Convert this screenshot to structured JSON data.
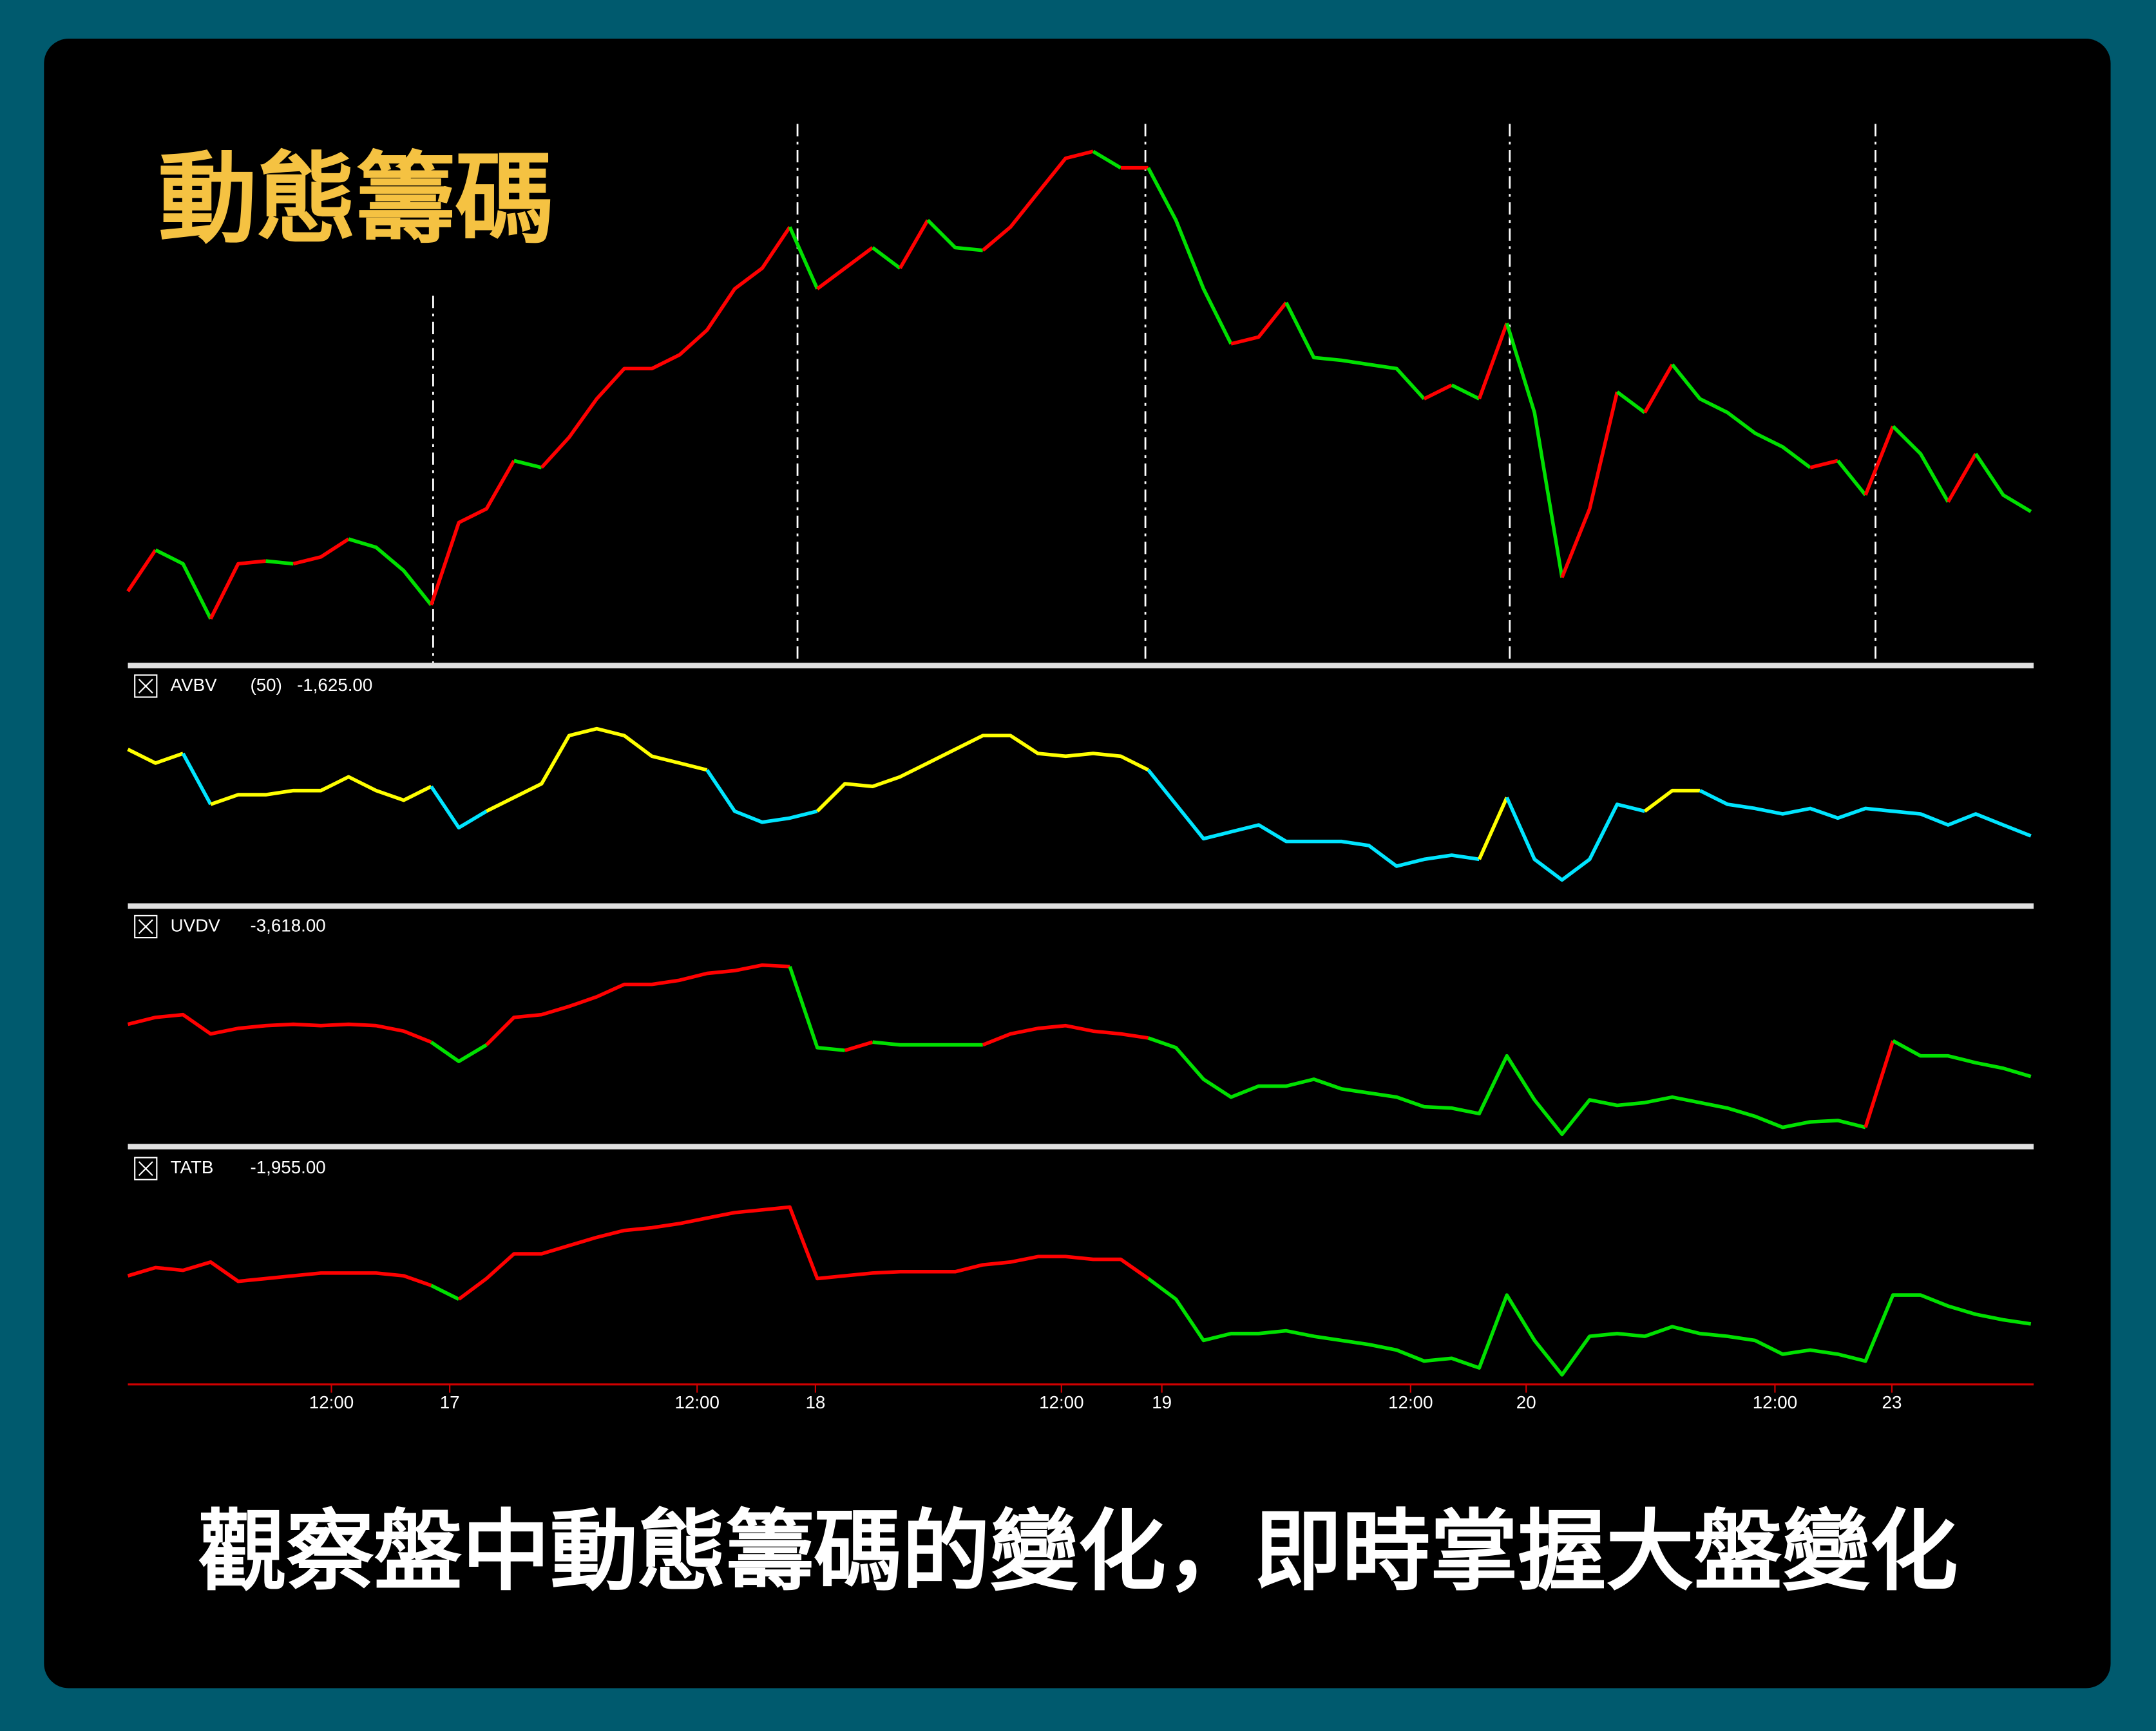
{
  "title": "動態籌碼",
  "caption": "觀察盤中動態籌碼的變化，即時掌握大盤變化",
  "chart_data": [
    {
      "type": "line",
      "color_up": "#ff0000",
      "color_down": "#00e000",
      "xlim": [
        0,
        69
      ],
      "ylim": [
        40,
        410
      ],
      "values": [
        70,
        100,
        90,
        50,
        90,
        92,
        90,
        95,
        108,
        102,
        85,
        60,
        120,
        130,
        165,
        160,
        182,
        210,
        232,
        232,
        242,
        260,
        290,
        305,
        335,
        290,
        305,
        320,
        305,
        340,
        320,
        318,
        335,
        360,
        385,
        390,
        378,
        378,
        340,
        290,
        250,
        255,
        280,
        240,
        238,
        235,
        232,
        210,
        220,
        210,
        265,
        200,
        80,
        130,
        215,
        200,
        235,
        210,
        200,
        185,
        175,
        160,
        165,
        140,
        190,
        170,
        135,
        170,
        140,
        128
      ]
    },
    {
      "type": "line",
      "name": "AVBV",
      "param": "(50)",
      "readout": "-1,625.00",
      "color_pos": "#ffff00",
      "color_neg": "#00e5ff",
      "xlim": [
        0,
        69
      ],
      "ylim": [
        -4562.5,
        4500
      ],
      "values": [
        2312.5,
        1687.5,
        2125,
        -187.5,
        250,
        250,
        437.5,
        437.5,
        1062.5,
        437.5,
        0,
        625,
        -1250,
        -500,
        125,
        750,
        2937.5,
        3250,
        2937.5,
        2000,
        1687.5,
        1375,
        -500,
        -1000,
        -812.5,
        -500,
        750,
        625,
        1062.5,
        1687.5,
        2312.5,
        2937.5,
        2937.5,
        2125,
        2000,
        2125,
        2000,
        1375,
        -187.5,
        -1750,
        -1437.5,
        -1125,
        -1875,
        -1875,
        -1875,
        -2062.5,
        -3000,
        -2687.5,
        -2500,
        -2687.5,
        125,
        -2687.5,
        -3625,
        -2687.5,
        -187.5,
        -500,
        437.5,
        437.5,
        -187.5,
        -375,
        -625,
        -375,
        -812.5,
        -375,
        -500,
        -625,
        -1125,
        -625,
        -1125,
        -1625
      ]
    },
    {
      "type": "line",
      "name": "UVDV",
      "readout": "-3,618.00",
      "color_pos": "#ff0000",
      "color_neg": "#00e000",
      "xlim": [
        0,
        69
      ],
      "ylim": [
        -10440,
        10585
      ],
      "values": [
        1885,
        2610,
        2900,
        870,
        1450,
        1740,
        1885,
        1740,
        1885,
        1740,
        1160,
        0,
        -2030,
        -290,
        2610,
        2900,
        3770,
        4785,
        6090,
        6090,
        6525,
        7250,
        7540,
        8120,
        7975,
        -580,
        -870,
        0,
        -290,
        -290,
        -290,
        -290,
        870,
        1450,
        1740,
        1160,
        870,
        435,
        -580,
        -3915,
        -5800,
        -4640,
        -4640,
        -3915,
        -4930,
        -5365,
        -5800,
        -6815,
        -6960,
        -7540,
        -1450,
        -6090,
        -9715,
        -6090,
        -6670,
        -6380,
        -5800,
        -6380,
        -6960,
        -7830,
        -8990,
        -8410,
        -8265,
        -8990,
        145,
        -1450,
        -1450,
        -2175,
        -2755,
        -3618
      ]
    },
    {
      "type": "line",
      "name": "TATB",
      "readout": "-1,955.00",
      "color_pos": "#ff0000",
      "color_neg": "#00e000",
      "xlim": [
        0,
        69
      ],
      "ylim": [
        -5525,
        6800
      ],
      "values": [
        1020,
        1530,
        1360,
        1870,
        680,
        850,
        1020,
        1190,
        1190,
        1190,
        1020,
        425,
        -425,
        850,
        2380,
        2380,
        2890,
        3400,
        3825,
        3995,
        4250,
        4590,
        4930,
        5100,
        5270,
        850,
        1020,
        1190,
        1275,
        1275,
        1275,
        1700,
        1870,
        2210,
        2210,
        2040,
        2040,
        850,
        -425,
        -2975,
        -2550,
        -2550,
        -2380,
        -2720,
        -2975,
        -3230,
        -3570,
        -4250,
        -4080,
        -4675,
        -170,
        -2975,
        -5100,
        -2720,
        -2550,
        -2720,
        -2125,
        -2550,
        -2720,
        -2975,
        -3825,
        -3570,
        -3825,
        -4250,
        -170,
        -170,
        -850,
        -1360,
        -1700,
        -1955
      ],
      "xticks": [
        {
          "value": 7.38,
          "label": "12:00"
        },
        {
          "value": 11.67,
          "label": "17"
        },
        {
          "value": 20.64,
          "label": "12:00"
        },
        {
          "value": 24.93,
          "label": "18"
        },
        {
          "value": 33.85,
          "label": "12:00"
        },
        {
          "value": 37.49,
          "label": "19"
        },
        {
          "value": 46.51,
          "label": "12:00"
        },
        {
          "value": 50.7,
          "label": "20"
        },
        {
          "value": 59.72,
          "label": "12:00"
        },
        {
          "value": 63.96,
          "label": "23"
        }
      ]
    }
  ]
}
